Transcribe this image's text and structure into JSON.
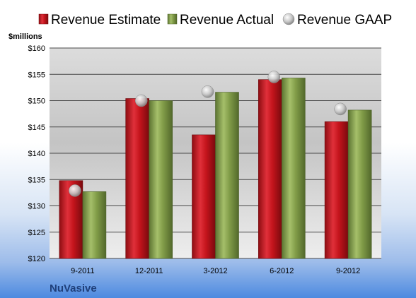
{
  "chart_data": {
    "type": "bar",
    "unit_label": "$millions",
    "company": "NuVasive",
    "categories": [
      "9-2011",
      "12-2011",
      "3-2012",
      "6-2012",
      "9-2012"
    ],
    "series": [
      {
        "name": "Revenue Estimate",
        "type": "bar",
        "color": "#c0121a",
        "values": [
          134.8,
          150.4,
          143.5,
          154.0,
          146.0
        ]
      },
      {
        "name": "Revenue Actual",
        "type": "bar",
        "color": "#7f9a46",
        "values": [
          132.7,
          150.0,
          151.6,
          154.3,
          148.2
        ]
      },
      {
        "name": "Revenue GAAP",
        "type": "scatter",
        "color": "#b8b8b8",
        "values": [
          132.9,
          150.0,
          151.7,
          154.5,
          148.4
        ]
      }
    ],
    "y_ticks": [
      "$120",
      "$125",
      "$130",
      "$135",
      "$140",
      "$145",
      "$150",
      "$155",
      "$160"
    ],
    "ylim": [
      120,
      160
    ],
    "grid": true,
    "legend_position": "top"
  }
}
